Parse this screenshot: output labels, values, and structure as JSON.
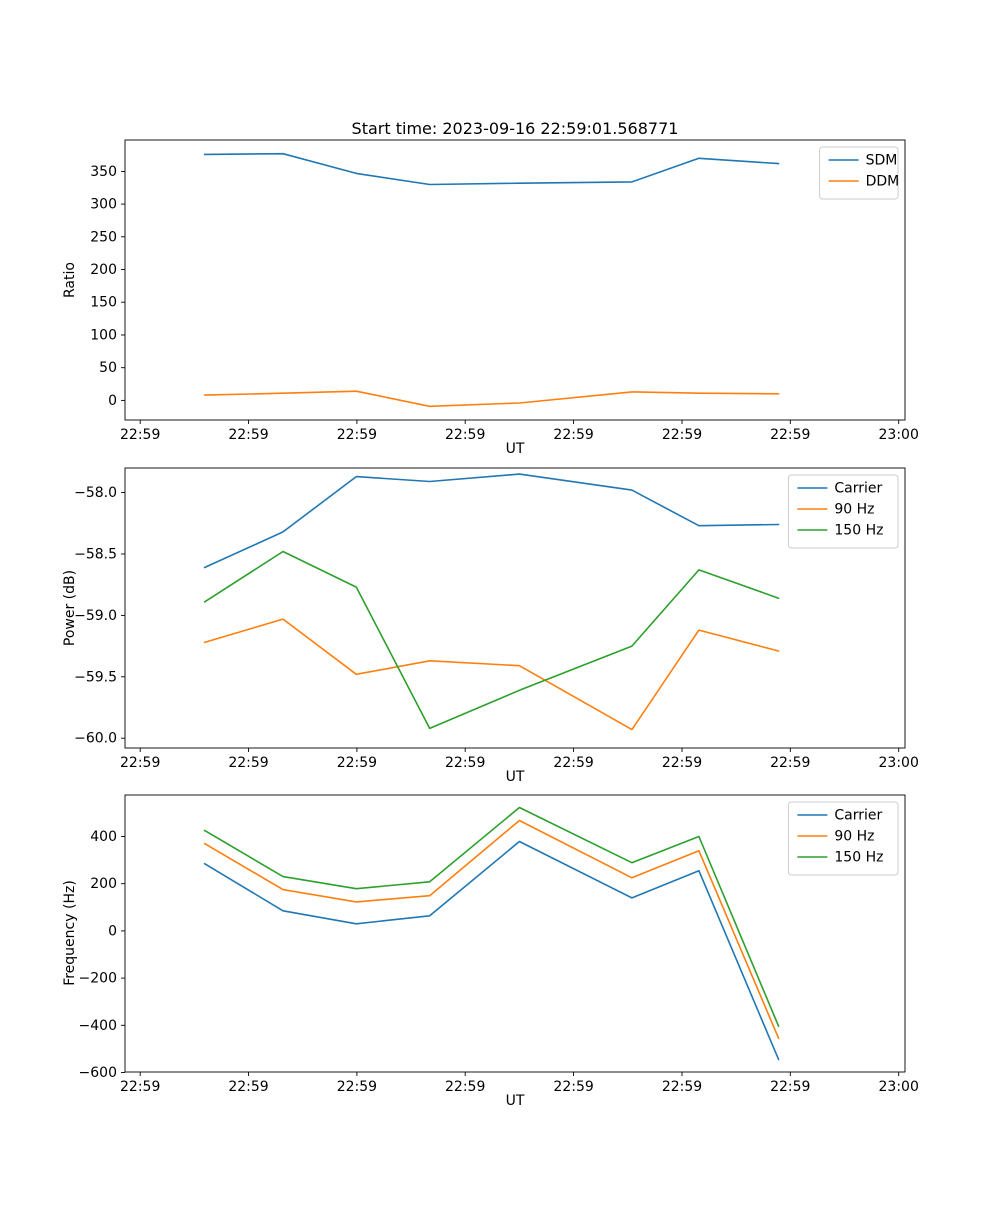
{
  "figure": {
    "title": "Start time: 2023-09-16 22:59:01.568771",
    "background": "#ffffff"
  },
  "colors": {
    "blue": "#1f77b4",
    "orange": "#ff7f0e",
    "green": "#2ca02c"
  },
  "chart_data": [
    {
      "type": "line",
      "title": "Start time: 2023-09-16 22:59:01.568771",
      "xlabel": "UT",
      "ylabel": "Ratio",
      "grid": false,
      "legend_position": "upper right",
      "x_seconds": [
        5.1,
        11.3,
        17.1,
        22.9,
        30.0,
        38.9,
        44.2,
        50.5
      ],
      "series": [
        {
          "name": "SDM",
          "color": "#1f77b4",
          "values": [
            376,
            377,
            347,
            330,
            332,
            334,
            370,
            362
          ]
        },
        {
          "name": "DDM",
          "color": "#ff7f0e",
          "values": [
            8,
            11,
            14,
            -9,
            -4,
            13,
            11,
            10
          ]
        }
      ],
      "xticks": [
        0,
        8.571,
        17.143,
        25.714,
        34.286,
        42.857,
        51.429,
        60
      ],
      "xtick_labels": [
        "22:59",
        "22:59",
        "22:59",
        "22:59",
        "22:59",
        "22:59",
        "22:59",
        "23:00"
      ],
      "yticks": [
        0,
        50,
        100,
        150,
        200,
        250,
        300,
        350
      ],
      "ytick_labels": [
        "0",
        "50",
        "100",
        "150",
        "200",
        "250",
        "300",
        "350"
      ],
      "xlim": [
        -1.2,
        60.5
      ],
      "ylim": [
        -30,
        398
      ]
    },
    {
      "type": "line",
      "title": "",
      "xlabel": "UT",
      "ylabel": "Power (dB)",
      "grid": false,
      "legend_position": "upper right",
      "x_seconds": [
        5.1,
        11.3,
        17.1,
        22.9,
        30.0,
        38.9,
        44.2,
        50.5
      ],
      "series": [
        {
          "name": "Carrier",
          "color": "#1f77b4",
          "values": [
            -58.61,
            -58.32,
            -57.87,
            -57.91,
            -57.85,
            -57.98,
            -58.27,
            -58.26
          ]
        },
        {
          "name": "90 Hz",
          "color": "#ff7f0e",
          "values": [
            -59.22,
            -59.03,
            -59.48,
            -59.37,
            -59.41,
            -59.93,
            -59.12,
            -59.29
          ]
        },
        {
          "name": "150 Hz",
          "color": "#2ca02c",
          "values": [
            -58.89,
            -58.48,
            -58.77,
            -59.92,
            -59.61,
            -59.25,
            -58.63,
            -58.86
          ]
        }
      ],
      "xticks": [
        0,
        8.571,
        17.143,
        25.714,
        34.286,
        42.857,
        51.429,
        60
      ],
      "xtick_labels": [
        "22:59",
        "22:59",
        "22:59",
        "22:59",
        "22:59",
        "22:59",
        "22:59",
        "23:00"
      ],
      "yticks": [
        -60.0,
        -59.5,
        -59.0,
        -58.5,
        -58.0
      ],
      "ytick_labels": [
        "−60.0",
        "−59.5",
        "−59.0",
        "−58.5",
        "−58.0"
      ],
      "xlim": [
        -1.2,
        60.5
      ],
      "ylim": [
        -60.08,
        -57.8
      ]
    },
    {
      "type": "line",
      "title": "",
      "xlabel": "UT",
      "ylabel": "Frequency (Hz)",
      "grid": false,
      "legend_position": "upper right",
      "x_seconds": [
        5.1,
        11.3,
        17.1,
        22.9,
        30.0,
        38.9,
        44.2,
        50.5
      ],
      "series": [
        {
          "name": "Carrier",
          "color": "#1f77b4",
          "values": [
            285,
            85,
            30,
            64,
            379,
            140,
            255,
            -545
          ]
        },
        {
          "name": "90 Hz",
          "color": "#ff7f0e",
          "values": [
            370,
            175,
            123,
            149,
            468,
            225,
            340,
            -455
          ]
        },
        {
          "name": "150 Hz",
          "color": "#2ca02c",
          "values": [
            426,
            230,
            179,
            208,
            523,
            289,
            400,
            -404
          ]
        }
      ],
      "xticks": [
        0,
        8.571,
        17.143,
        25.714,
        34.286,
        42.857,
        51.429,
        60
      ],
      "xtick_labels": [
        "22:59",
        "22:59",
        "22:59",
        "22:59",
        "22:59",
        "22:59",
        "22:59",
        "23:00"
      ],
      "yticks": [
        -600,
        -400,
        -200,
        0,
        200,
        400
      ],
      "ytick_labels": [
        "−600",
        "−400",
        "−200",
        "0",
        "200",
        "400"
      ],
      "xlim": [
        -1.2,
        60.5
      ],
      "ylim": [
        -598,
        576
      ]
    }
  ]
}
